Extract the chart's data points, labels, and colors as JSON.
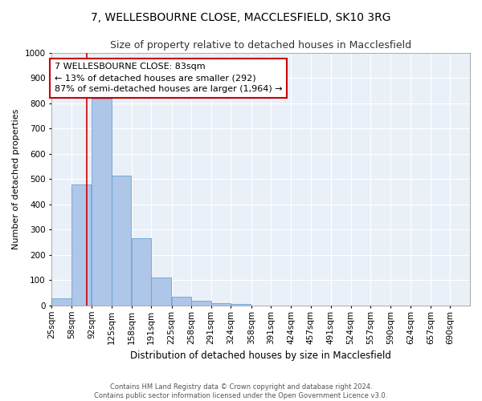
{
  "title1": "7, WELLESBOURNE CLOSE, MACCLESFIELD, SK10 3RG",
  "title2": "Size of property relative to detached houses in Macclesfield",
  "xlabel": "Distribution of detached houses by size in Macclesfield",
  "ylabel": "Number of detached properties",
  "bar_values": [
    28,
    480,
    818,
    515,
    265,
    112,
    35,
    18,
    8,
    5,
    0,
    0,
    0,
    0,
    0,
    0,
    0,
    0,
    0,
    0
  ],
  "bin_labels": [
    "25sqm",
    "58sqm",
    "92sqm",
    "125sqm",
    "158sqm",
    "191sqm",
    "225sqm",
    "258sqm",
    "291sqm",
    "324sqm",
    "358sqm",
    "391sqm",
    "424sqm",
    "457sqm",
    "491sqm",
    "524sqm",
    "557sqm",
    "590sqm",
    "624sqm",
    "657sqm",
    "690sqm"
  ],
  "bin_edges": [
    25,
    58,
    92,
    125,
    158,
    191,
    225,
    258,
    291,
    324,
    358,
    391,
    424,
    457,
    491,
    524,
    557,
    590,
    624,
    657,
    690
  ],
  "bar_color": "#aec6e8",
  "bar_edge_color": "#6aa3d4",
  "vline_x": 83,
  "vline_color": "#cc0000",
  "annotation_text": "7 WELLESBOURNE CLOSE: 83sqm\n← 13% of detached houses are smaller (292)\n87% of semi-detached houses are larger (1,964) →",
  "annotation_box_color": "#ffffff",
  "annotation_box_edge": "#cc0000",
  "ylim": [
    0,
    1000
  ],
  "yticks": [
    0,
    100,
    200,
    300,
    400,
    500,
    600,
    700,
    800,
    900,
    1000
  ],
  "bg_color": "#eaf0f8",
  "footer1": "Contains HM Land Registry data © Crown copyright and database right 2024.",
  "footer2": "Contains public sector information licensed under the Open Government Licence v3.0.",
  "title1_fontsize": 10,
  "title2_fontsize": 9,
  "xlabel_fontsize": 8.5,
  "ylabel_fontsize": 8,
  "tick_fontsize": 7.5,
  "annotation_fontsize": 8
}
